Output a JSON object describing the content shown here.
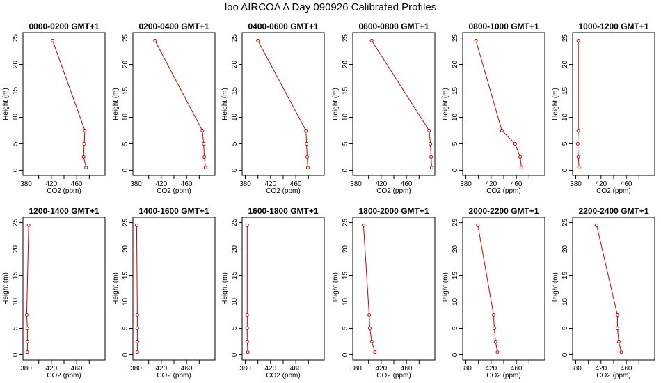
{
  "page": {
    "title": "loo AIRCOA A  Day 090926  Calibrated Profiles"
  },
  "chart_data": [
    {
      "type": "line",
      "title": "0000-0200 GMT+1",
      "xlabel": "CO2 (ppm)",
      "ylabel": "Height (m)",
      "xlim": [
        375,
        505
      ],
      "ylim": [
        -1,
        26
      ],
      "xticks": [
        380,
        420,
        460
      ],
      "yticks": [
        0,
        5,
        10,
        15,
        20,
        25
      ],
      "series": [
        {
          "color": "#cc0000",
          "x": [
            475,
            471,
            472,
            473,
            422
          ],
          "y": [
            0.5,
            2.5,
            5,
            7.5,
            24.5
          ]
        }
      ]
    },
    {
      "type": "line",
      "title": "0200-0400 GMT+1",
      "xlabel": "CO2 (ppm)",
      "ylabel": "Height (m)",
      "xlim": [
        375,
        505
      ],
      "ylim": [
        -1,
        26
      ],
      "xticks": [
        380,
        420,
        460
      ],
      "yticks": [
        0,
        5,
        10,
        15,
        20,
        25
      ],
      "series": [
        {
          "color": "#cc0000",
          "x": [
            490,
            488,
            487,
            485,
            410
          ],
          "y": [
            0.5,
            2.5,
            5,
            7.5,
            24.5
          ]
        }
      ]
    },
    {
      "type": "line",
      "title": "0400-0600 GMT+1",
      "xlabel": "CO2 (ppm)",
      "ylabel": "Height (m)",
      "xlim": [
        375,
        505
      ],
      "ylim": [
        -1,
        26
      ],
      "xticks": [
        380,
        420,
        460
      ],
      "yticks": [
        0,
        5,
        10,
        15,
        20,
        25
      ],
      "series": [
        {
          "color": "#cc0000",
          "x": [
            479,
            478,
            477,
            476,
            400
          ],
          "y": [
            0.5,
            2.5,
            5,
            7.5,
            24.5
          ]
        }
      ]
    },
    {
      "type": "line",
      "title": "0600-0800 GMT+1",
      "xlabel": "CO2 (ppm)",
      "ylabel": "Height (m)",
      "xlim": [
        375,
        505
      ],
      "ylim": [
        -1,
        26
      ],
      "xticks": [
        380,
        420,
        460
      ],
      "yticks": [
        0,
        5,
        10,
        15,
        20,
        25
      ],
      "series": [
        {
          "color": "#cc0000",
          "x": [
            500,
            499,
            498,
            496,
            405
          ],
          "y": [
            0.5,
            2.5,
            5,
            7.5,
            24.5
          ]
        }
      ]
    },
    {
      "type": "line",
      "title": "0800-1000 GMT+1",
      "xlabel": "CO2 (ppm)",
      "ylabel": "Height (m)",
      "xlim": [
        375,
        505
      ],
      "ylim": [
        -1,
        26
      ],
      "xticks": [
        380,
        420,
        460
      ],
      "yticks": [
        0,
        5,
        10,
        15,
        20,
        25
      ],
      "series": [
        {
          "color": "#cc0000",
          "x": [
            468,
            466,
            458,
            437,
            396
          ],
          "y": [
            0.5,
            2.5,
            5,
            7.5,
            24.5
          ]
        }
      ]
    },
    {
      "type": "line",
      "title": "1000-1200 GMT+1",
      "xlabel": "CO2 (ppm)",
      "ylabel": "Height (m)",
      "xlim": [
        375,
        505
      ],
      "ylim": [
        -1,
        26
      ],
      "xticks": [
        380,
        420,
        460
      ],
      "yticks": [
        0,
        5,
        10,
        15,
        20,
        25
      ],
      "series": [
        {
          "color": "#cc0000",
          "x": [
            385,
            384,
            383,
            384,
            384
          ],
          "y": [
            0.5,
            2.5,
            5,
            7.5,
            24.5
          ]
        }
      ]
    },
    {
      "type": "line",
      "title": "1200-1400 GMT+1",
      "xlabel": "CO2 (ppm)",
      "ylabel": "Height (m)",
      "xlim": [
        375,
        505
      ],
      "ylim": [
        -1,
        26
      ],
      "xticks": [
        380,
        420,
        460
      ],
      "yticks": [
        0,
        5,
        10,
        15,
        20,
        25
      ],
      "series": [
        {
          "color": "#cc0000",
          "x": [
            382,
            382,
            382,
            381,
            384
          ],
          "y": [
            0.5,
            2.5,
            5,
            7.5,
            24.5
          ]
        }
      ]
    },
    {
      "type": "line",
      "title": "1400-1600 GMT+1",
      "xlabel": "CO2 (ppm)",
      "ylabel": "Height (m)",
      "xlim": [
        375,
        505
      ],
      "ylim": [
        -1,
        26
      ],
      "xticks": [
        380,
        420,
        460
      ],
      "yticks": [
        0,
        5,
        10,
        15,
        20,
        25
      ],
      "series": [
        {
          "color": "#cc0000",
          "x": [
            382,
            382,
            382,
            382,
            381
          ],
          "y": [
            0.5,
            2.5,
            5,
            7.5,
            24.5
          ]
        }
      ]
    },
    {
      "type": "line",
      "title": "1600-1800 GMT+1",
      "xlabel": "CO2 (ppm)",
      "ylabel": "Height (m)",
      "xlim": [
        375,
        505
      ],
      "ylim": [
        -1,
        26
      ],
      "xticks": [
        380,
        420,
        460
      ],
      "yticks": [
        0,
        5,
        10,
        15,
        20,
        25
      ],
      "series": [
        {
          "color": "#cc0000",
          "x": [
            384,
            383,
            383,
            383,
            383
          ],
          "y": [
            0.5,
            2.5,
            5,
            7.5,
            24.5
          ]
        }
      ]
    },
    {
      "type": "line",
      "title": "1800-2000 GMT+1",
      "xlabel": "CO2 (ppm)",
      "ylabel": "Height (m)",
      "xlim": [
        375,
        505
      ],
      "ylim": [
        -1,
        26
      ],
      "xticks": [
        380,
        420,
        460
      ],
      "yticks": [
        0,
        5,
        10,
        15,
        20,
        25
      ],
      "series": [
        {
          "color": "#cc0000",
          "x": [
            410,
            405,
            402,
            401,
            392
          ],
          "y": [
            0.5,
            2.5,
            5,
            7.5,
            24.5
          ]
        }
      ]
    },
    {
      "type": "line",
      "title": "2000-2200 GMT+1",
      "xlabel": "CO2 (ppm)",
      "ylabel": "Height (m)",
      "xlim": [
        375,
        505
      ],
      "ylim": [
        -1,
        26
      ],
      "xticks": [
        380,
        420,
        460
      ],
      "yticks": [
        0,
        5,
        10,
        15,
        20,
        25
      ],
      "series": [
        {
          "color": "#cc0000",
          "x": [
            430,
            427,
            425,
            424,
            399
          ],
          "y": [
            0.5,
            2.5,
            5,
            7.5,
            24.5
          ]
        }
      ]
    },
    {
      "type": "line",
      "title": "2200-2400 GMT+1",
      "xlabel": "CO2 (ppm)",
      "ylabel": "Height (m)",
      "xlim": [
        375,
        505
      ],
      "ylim": [
        -1,
        26
      ],
      "xticks": [
        380,
        420,
        460
      ],
      "yticks": [
        0,
        5,
        10,
        15,
        20,
        25
      ],
      "series": [
        {
          "color": "#cc0000",
          "x": [
            452,
            448,
            446,
            446,
            413
          ],
          "y": [
            0.5,
            2.5,
            5,
            7.5,
            24.5
          ]
        }
      ]
    }
  ]
}
